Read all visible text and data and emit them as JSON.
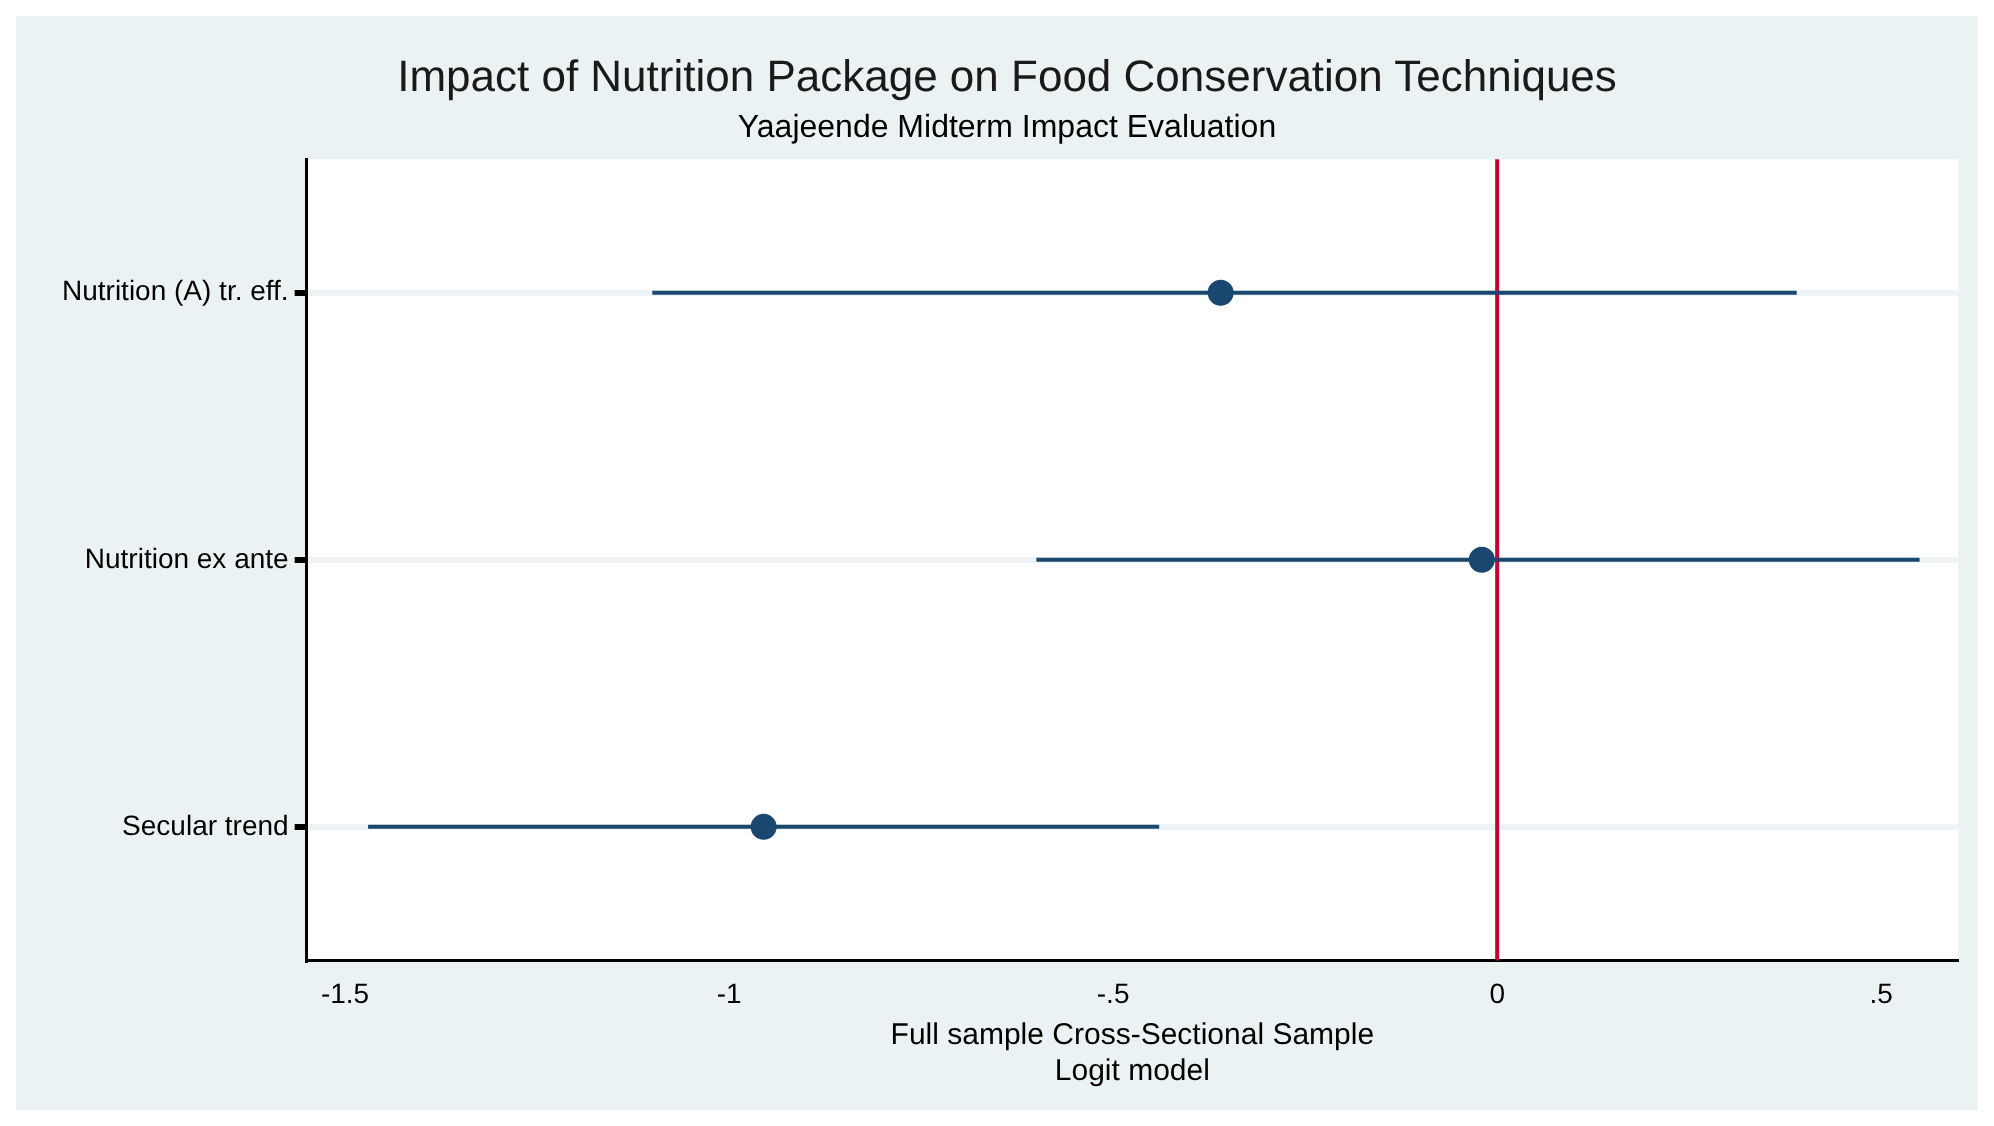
{
  "chart_data": {
    "type": "scatter",
    "orientation": "horizontal",
    "title": "Impact of Nutrition Package on Food Conservation Techniques",
    "subtitle": "Yaajeende Midterm Impact Evaluation",
    "xlabel": "Full sample Cross-Sectional Sample\nLogit model",
    "categories": [
      "Nutrition (A) tr. eff.",
      "Nutrition ex ante",
      "Secular trend"
    ],
    "color": "#1a476f",
    "values": [
      -0.36,
      -0.02,
      -0.955
    ],
    "errors": [
      [
        -1.1,
        0.39
      ],
      [
        -0.6,
        0.55
      ],
      [
        -1.47,
        -0.44
      ]
    ],
    "xlim": [
      -1.55,
      0.6
    ],
    "xticks": [
      {
        "value": -1.5,
        "label": "-1.5"
      },
      {
        "value": -1,
        "label": "-1"
      },
      {
        "value": -0.5,
        "label": "-.5"
      },
      0,
      {
        "value": 0.5,
        "label": ".5"
      }
    ],
    "ref_lines": [
      {
        "axis": "x",
        "value": 0,
        "color": "#c10534"
      }
    ],
    "grid": "y",
    "legend": false,
    "marker": "circle"
  }
}
